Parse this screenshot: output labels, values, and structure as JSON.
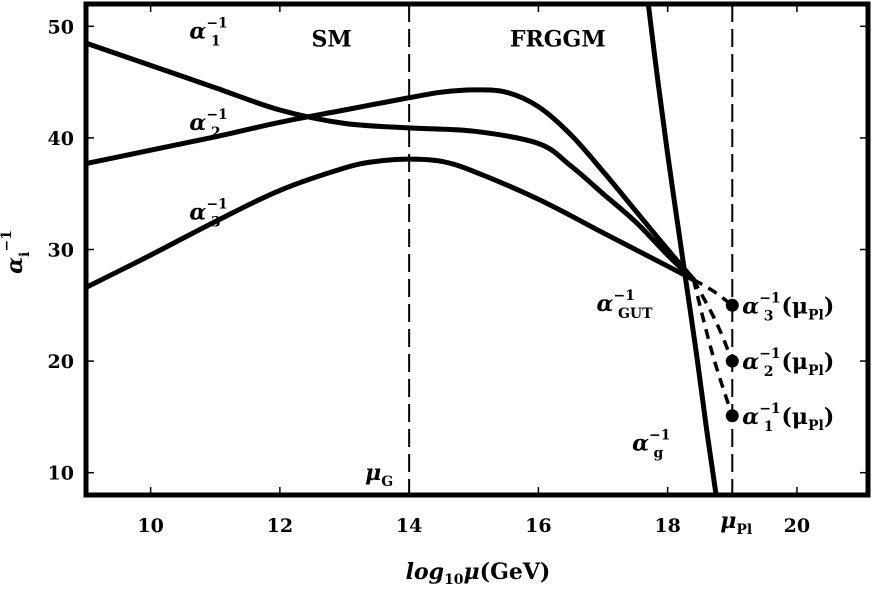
{
  "chart_data": {
    "type": "line",
    "xlabel_main": "log",
    "xlabel_sub": "10",
    "xlabel_mu": "μ",
    "xlabel_unit": "(GeV)",
    "ylabel_main": "α",
    "ylabel_sub": "i",
    "ylabel_sup": "−1",
    "xlim": [
      9,
      21.1
    ],
    "ylim": [
      8,
      52
    ],
    "x_ticks": [
      10,
      12,
      14,
      16,
      18,
      20
    ],
    "y_ticks": [
      10,
      20,
      30,
      40,
      50
    ],
    "grid": false,
    "region_labels": [
      {
        "text": "SM",
        "x": 12.8,
        "y": 48.2
      },
      {
        "text": "FRGGM",
        "x": 16.3,
        "y": 48.2
      }
    ],
    "vlines": [
      {
        "x": 14,
        "label_main": "μ",
        "label_sub": "G",
        "style": "dashed"
      },
      {
        "x": 19.0,
        "label_main": "μ",
        "label_sub": "Pl",
        "style": "dashed"
      }
    ],
    "series": [
      {
        "id": "alpha1",
        "label_main": "α",
        "label_sub": "1",
        "label_sup": "−1",
        "label_pos": [
          10.6,
          48.9
        ],
        "x": [
          9,
          10,
          11,
          12,
          13,
          14,
          15,
          16,
          16.5,
          17,
          17.5,
          18,
          18.4
        ],
        "y": [
          48.5,
          46.5,
          44.5,
          42.5,
          41.3,
          40.9,
          40.6,
          39.5,
          37.5,
          35.0,
          32.5,
          29.5,
          27.3
        ]
      },
      {
        "id": "alpha2",
        "label_main": "α",
        "label_sub": "2",
        "label_sup": "−1",
        "label_pos": [
          10.6,
          40.7
        ],
        "x": [
          9,
          10,
          11,
          12,
          13,
          14,
          14.5,
          15,
          15.5,
          16,
          16.5,
          17,
          17.5,
          18,
          18.4
        ],
        "y": [
          37.7,
          38.9,
          40.1,
          41.4,
          42.5,
          43.6,
          44.1,
          44.3,
          44.1,
          42.8,
          40.3,
          37.0,
          33.5,
          30.0,
          27.3
        ]
      },
      {
        "id": "alpha3",
        "label_main": "α",
        "label_sub": "3",
        "label_sup": "−1",
        "label_pos": [
          10.6,
          32.7
        ],
        "x": [
          9,
          10,
          11,
          12,
          13,
          13.5,
          14,
          14.5,
          15,
          16,
          17,
          18,
          18.4
        ],
        "y": [
          26.6,
          29.5,
          32.5,
          35.3,
          37.3,
          37.9,
          38.1,
          37.9,
          37.0,
          34.5,
          31.5,
          28.5,
          27.3
        ]
      },
      {
        "id": "alphag",
        "label_main": "α",
        "label_sub": "g",
        "label_sup": "−1",
        "label_pos": [
          17.45,
          12.0
        ],
        "x": [
          17.7,
          17.85,
          18.0,
          18.15,
          18.3,
          18.45,
          18.6,
          18.75
        ],
        "y": [
          52.0,
          45.0,
          38.5,
          32.5,
          26.5,
          20.5,
          14.0,
          8.0
        ]
      }
    ],
    "dashed_runs": [
      {
        "x": [
          18.4,
          18.7,
          19.0
        ],
        "y": [
          27.3,
          26.3,
          25.0
        ]
      },
      {
        "x": [
          18.4,
          18.75,
          19.0
        ],
        "y": [
          27.3,
          23.5,
          20.0
        ]
      },
      {
        "x": [
          18.4,
          18.7,
          19.0
        ],
        "y": [
          27.3,
          20.5,
          15.1
        ]
      }
    ],
    "points": [
      {
        "x": 19.0,
        "y": 25.0,
        "label_main": "α",
        "label_sub": "3",
        "label_sup": "−1",
        "label_mu": "(μ",
        "label_mu_sub": "Pl",
        "label_close": ")"
      },
      {
        "x": 19.0,
        "y": 20.0,
        "label_main": "α",
        "label_sub": "2",
        "label_sup": "−1",
        "label_mu": "(μ",
        "label_mu_sub": "Pl",
        "label_close": ")"
      },
      {
        "x": 19.0,
        "y": 15.1,
        "label_main": "α",
        "label_sub": "1",
        "label_sup": "−1",
        "label_mu": "(μ",
        "label_mu_sub": "Pl",
        "label_close": ")"
      }
    ],
    "gut_label": {
      "main": "α",
      "sub": "GUT",
      "sup": "−1",
      "x": 16.9,
      "y": 24.5
    }
  }
}
